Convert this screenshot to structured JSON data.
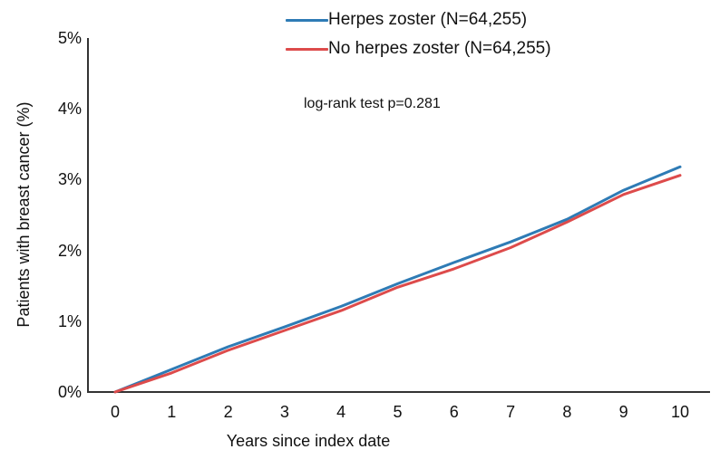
{
  "chart_data": {
    "type": "line",
    "x": [
      0,
      1,
      2,
      3,
      4,
      5,
      6,
      7,
      8,
      9,
      10
    ],
    "series": [
      {
        "name": "Herpes zoster (N=64,255)",
        "color": "#2e7bb5",
        "values": [
          0,
          0.32,
          0.64,
          0.92,
          1.21,
          1.53,
          1.83,
          2.12,
          2.44,
          2.85,
          3.18
        ]
      },
      {
        "name": "No herpes zoster (N=64,255)",
        "color": "#dd4b4b",
        "values": [
          0,
          0.27,
          0.59,
          0.87,
          1.15,
          1.48,
          1.74,
          2.04,
          2.4,
          2.79,
          3.06
        ]
      }
    ],
    "title": "",
    "xlabel": "Years since index date",
    "ylabel": "Patients with breast cancer (%)",
    "xticks": [
      "0",
      "1",
      "2",
      "3",
      "4",
      "5",
      "6",
      "7",
      "8",
      "9",
      "10"
    ],
    "yticks": [
      "0%",
      "1%",
      "2%",
      "3%",
      "4%",
      "5%"
    ],
    "xlim": [
      0,
      10
    ],
    "ylim": [
      0,
      5
    ],
    "annotation": "log-rank test p=0.281",
    "legend_position": "top-center",
    "grid": false,
    "axis_color": "#333333"
  }
}
